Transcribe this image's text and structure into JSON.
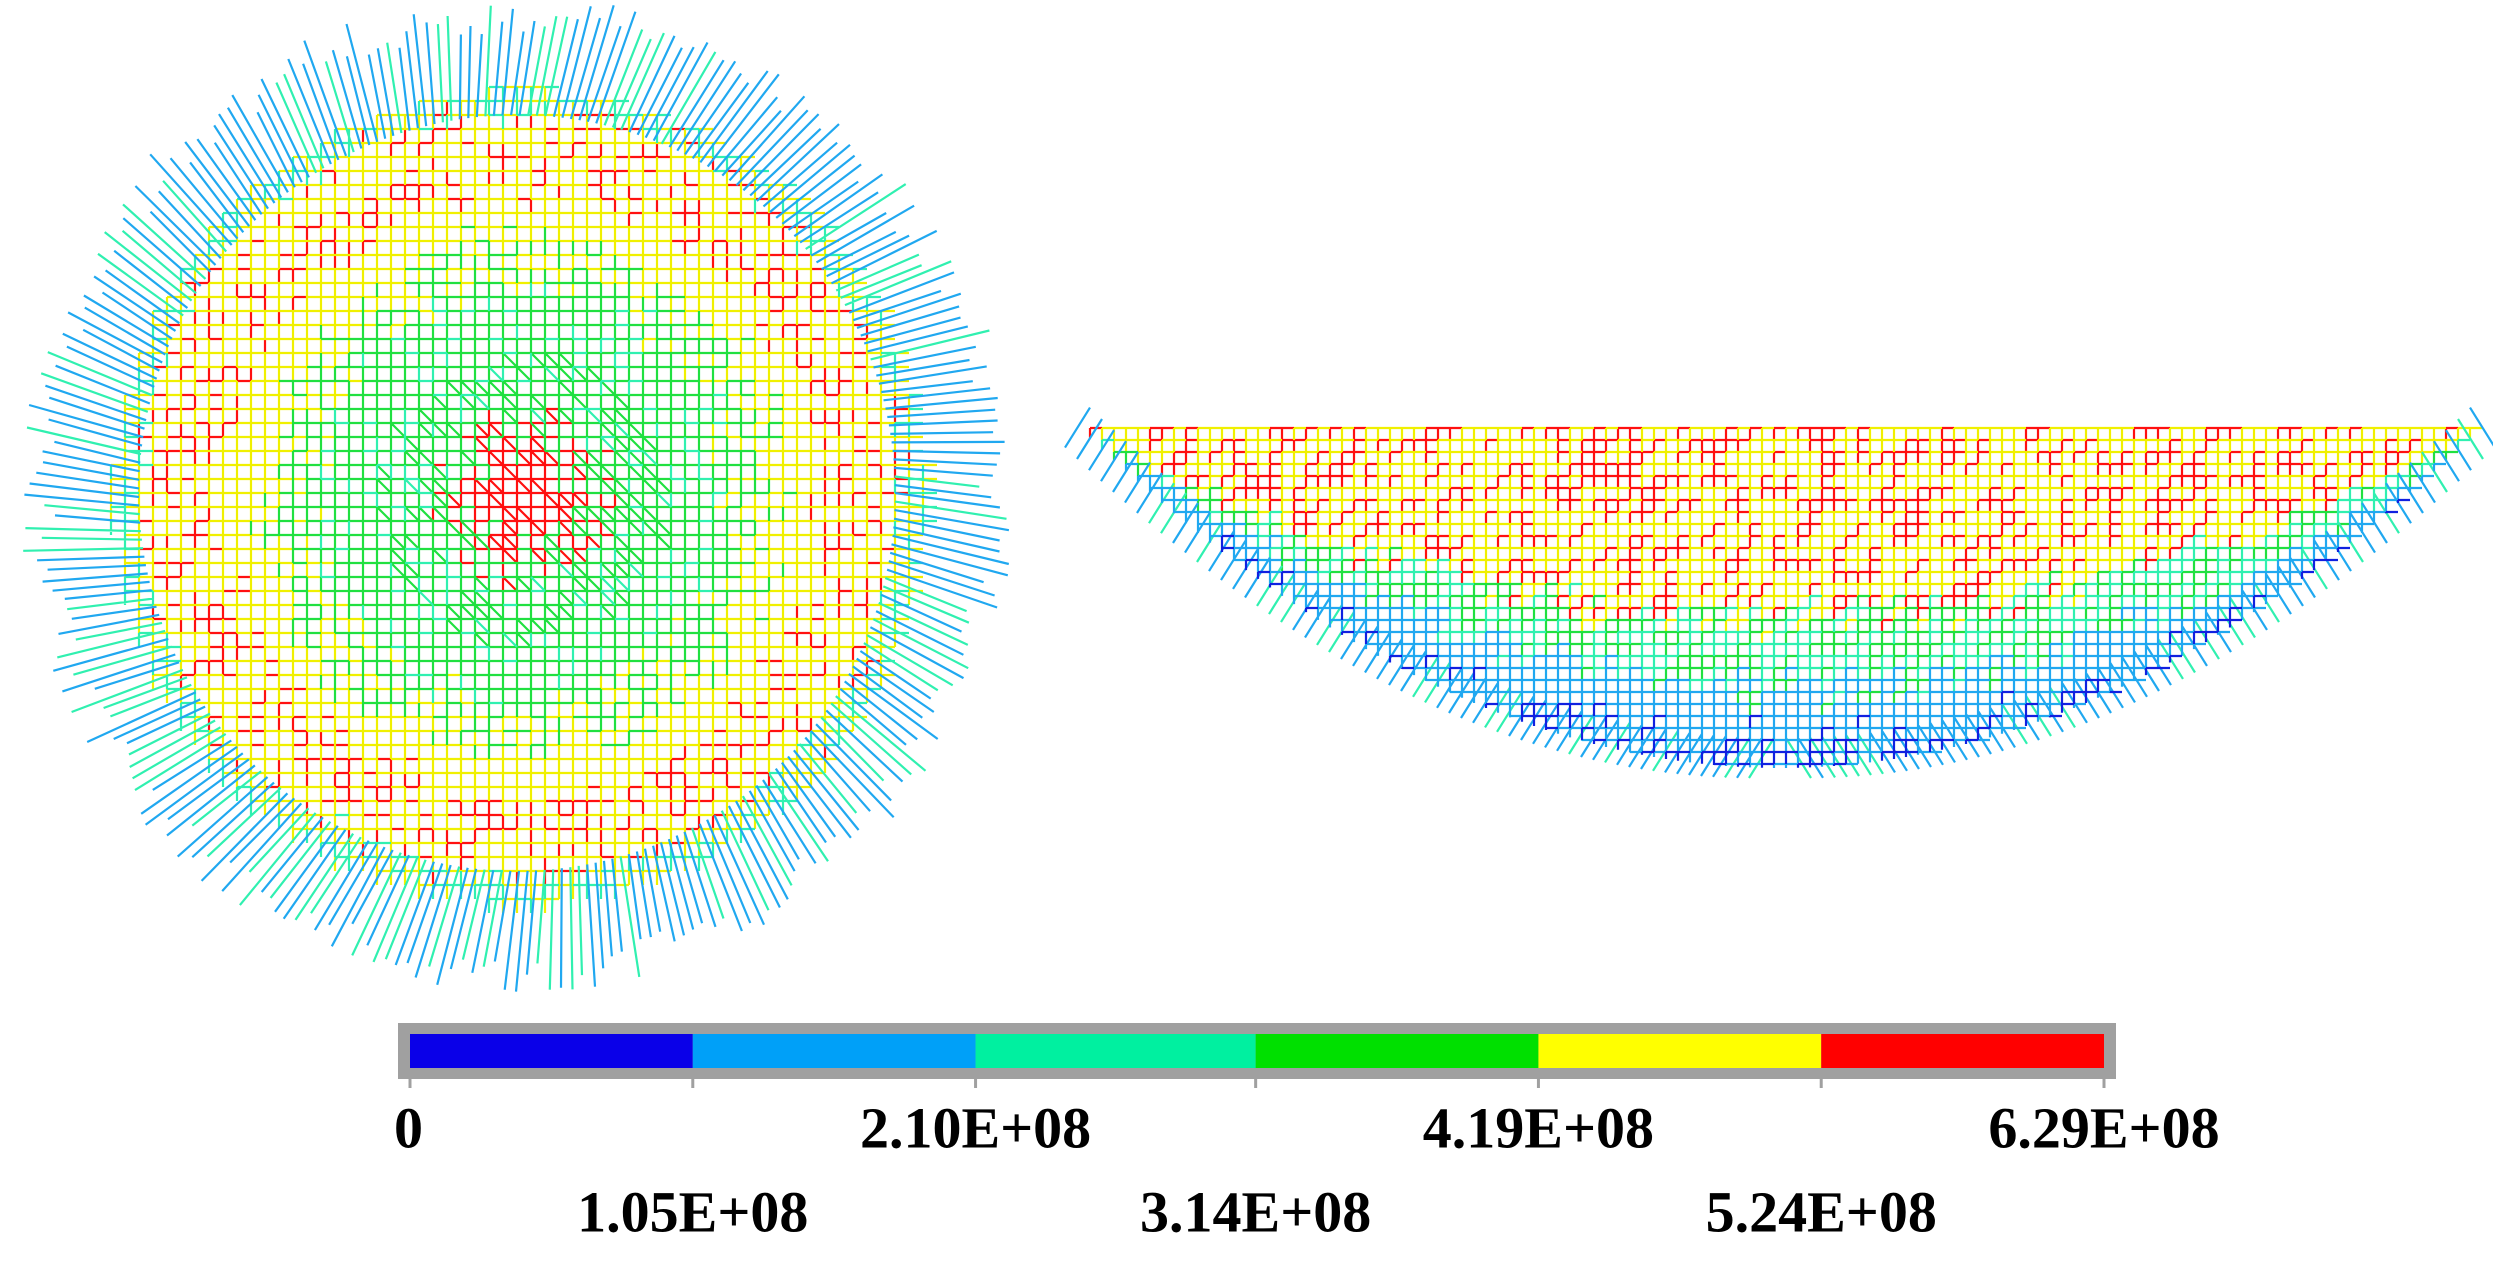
{
  "chart_data": {
    "type": "colorbar",
    "colors": [
      "#0a00e8",
      "#00a0f8",
      "#00f0a0",
      "#00e000",
      "#ffff00",
      "#ff0000"
    ],
    "xlim": [
      0,
      629000000
    ],
    "xticks": [
      0,
      {
        "value": 105000000,
        "label": "1.05E+08"
      },
      {
        "value": 210000000,
        "label": "2.10E+08"
      },
      {
        "value": 314000000,
        "label": "3.14E+08"
      },
      {
        "value": 419000000,
        "label": "4.19E+08"
      },
      {
        "value": 524000000,
        "label": "5.24E+08"
      },
      {
        "value": 629000000,
        "label": "6.29E+08"
      }
    ]
  }
}
